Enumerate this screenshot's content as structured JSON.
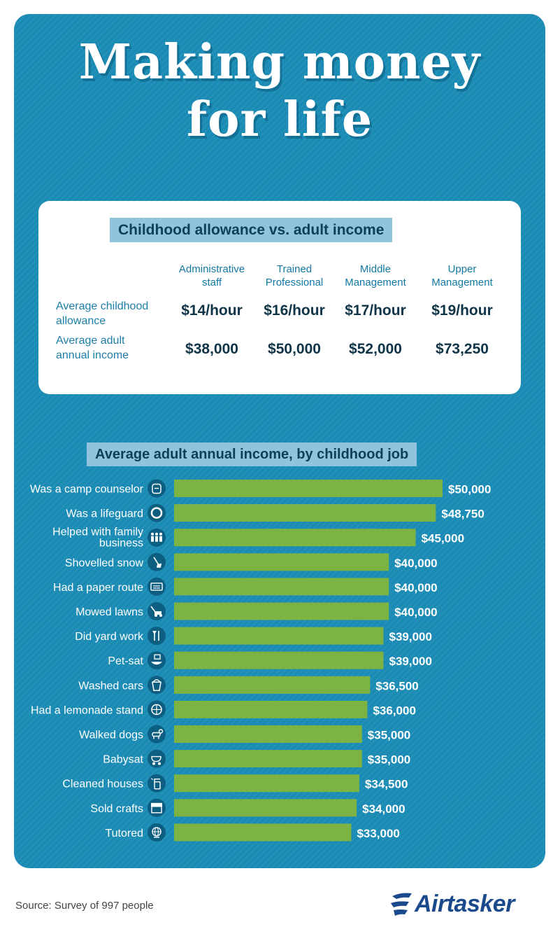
{
  "header": {
    "title_line1": "Making money",
    "title_line2": "for life"
  },
  "table": {
    "title": "Childhood allowance vs. adult income",
    "columns": [
      {
        "line1": "Administrative",
        "line2": "staff"
      },
      {
        "line1": "Trained",
        "line2": "Professional"
      },
      {
        "line1": "Middle",
        "line2": "Management"
      },
      {
        "line1": "Upper",
        "line2": "Management"
      }
    ],
    "rows": [
      {
        "label_line1": "Average childhood",
        "label_line2": "allowance",
        "values": [
          "$14/hour",
          "$16/hour",
          "$17/hour",
          "$19/hour"
        ]
      },
      {
        "label_line1": "Average adult",
        "label_line2": "annual income",
        "values": [
          "$38,000",
          "$50,000",
          "$52,000",
          "$73,250"
        ]
      }
    ]
  },
  "chart_data": {
    "type": "bar",
    "orientation": "horizontal",
    "title": "Average adult annual income, by childhood job",
    "categories": [
      "Was a camp counselor",
      "Was a lifeguard",
      "Helped with family business",
      "Shovelled snow",
      "Had a paper route",
      "Mowed lawns",
      "Did yard work",
      "Pet-sat",
      "Washed cars",
      "Had a lemonade stand",
      "Walked dogs",
      "Babysat",
      "Cleaned houses",
      "Sold crafts",
      "Tutored"
    ],
    "values": [
      50000,
      48750,
      45000,
      40000,
      40000,
      40000,
      39000,
      39000,
      36500,
      36000,
      35000,
      35000,
      34500,
      34000,
      33000
    ],
    "value_labels": [
      "$50,000",
      "$48,750",
      "$45,000",
      "$40,000",
      "$40,000",
      "$40,000",
      "$39,000",
      "$39,000",
      "$36,500",
      "$36,000",
      "$35,000",
      "$35,000",
      "$34,500",
      "$34,000",
      "$33,000"
    ],
    "icons": [
      "backpack-icon",
      "lifebuoy-icon",
      "family-icon",
      "shovel-icon",
      "newspaper-icon",
      "lawnmower-icon",
      "garden-tools-icon",
      "pet-bowl-icon",
      "bucket-icon",
      "lemonade-icon",
      "dog-icon",
      "stroller-icon",
      "spray-bottle-icon",
      "shop-stall-icon",
      "globe-icon"
    ],
    "xlim": [
      0,
      50000
    ],
    "grid": false,
    "legend": "none",
    "bar_color": "#7cb342"
  },
  "footer": {
    "source": "Source: Survey of 997 people",
    "brand": "Airtasker"
  },
  "colors": {
    "panel": "#1a8bb4",
    "badge": "#90c4dc",
    "bar": "#7cb342",
    "brand": "#1a4a8c"
  }
}
